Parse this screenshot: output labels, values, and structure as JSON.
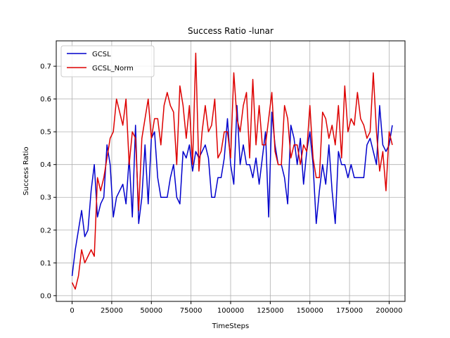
{
  "chart_data": {
    "type": "line",
    "title": "Success Ratio -lunar",
    "xlabel": "TimeSteps",
    "ylabel": "Success Ratio",
    "xlim": [
      -10000,
      210000
    ],
    "ylim": [
      -0.0175,
      0.7775
    ],
    "xticks": [
      0,
      25000,
      50000,
      75000,
      100000,
      125000,
      150000,
      175000,
      200000
    ],
    "xtick_labels": [
      "0",
      "25000",
      "50000",
      "75000",
      "100000",
      "125000",
      "150000",
      "175000",
      "200000"
    ],
    "yticks": [
      0.0,
      0.1,
      0.2,
      0.3,
      0.4,
      0.5,
      0.6,
      0.7
    ],
    "ytick_labels": [
      "0.0",
      "0.1",
      "0.2",
      "0.3",
      "0.4",
      "0.5",
      "0.6",
      "0.7"
    ],
    "grid": true,
    "legend_position": "top-left",
    "x_step": 2000,
    "series": [
      {
        "name": "GCSL",
        "color": "#0000cc",
        "values": [
          0.06,
          0.14,
          0.2,
          0.26,
          0.18,
          0.2,
          0.32,
          0.4,
          0.24,
          0.28,
          0.3,
          0.46,
          0.4,
          0.24,
          0.3,
          0.32,
          0.34,
          0.28,
          0.42,
          0.24,
          0.52,
          0.22,
          0.3,
          0.46,
          0.28,
          0.48,
          0.5,
          0.36,
          0.3,
          0.3,
          0.3,
          0.36,
          0.4,
          0.3,
          0.28,
          0.44,
          0.42,
          0.46,
          0.38,
          0.44,
          0.42,
          0.44,
          0.46,
          0.42,
          0.3,
          0.3,
          0.36,
          0.36,
          0.42,
          0.54,
          0.4,
          0.34,
          0.58,
          0.4,
          0.46,
          0.4,
          0.4,
          0.36,
          0.42,
          0.34,
          0.42,
          0.5,
          0.24,
          0.56,
          0.46,
          0.4,
          0.4,
          0.36,
          0.28,
          0.52,
          0.48,
          0.4,
          0.48,
          0.34,
          0.44,
          0.5,
          0.4,
          0.22,
          0.32,
          0.4,
          0.34,
          0.46,
          0.32,
          0.22,
          0.44,
          0.4,
          0.4,
          0.36,
          0.4,
          0.36,
          0.36,
          0.36,
          0.36,
          0.46,
          0.48,
          0.44,
          0.4,
          0.58,
          0.46,
          0.44,
          0.46,
          0.52
        ]
      },
      {
        "name": "GCSL_Norm",
        "color": "#dd0000",
        "values": [
          0.04,
          0.02,
          0.06,
          0.14,
          0.1,
          0.12,
          0.14,
          0.12,
          0.36,
          0.32,
          0.36,
          0.42,
          0.48,
          0.5,
          0.6,
          0.56,
          0.52,
          0.6,
          0.4,
          0.5,
          0.48,
          0.26,
          0.48,
          0.54,
          0.6,
          0.48,
          0.54,
          0.54,
          0.46,
          0.58,
          0.62,
          0.58,
          0.56,
          0.4,
          0.64,
          0.58,
          0.48,
          0.58,
          0.4,
          0.74,
          0.38,
          0.5,
          0.58,
          0.5,
          0.52,
          0.6,
          0.42,
          0.44,
          0.5,
          0.5,
          0.42,
          0.68,
          0.54,
          0.5,
          0.58,
          0.62,
          0.42,
          0.66,
          0.46,
          0.58,
          0.46,
          0.46,
          0.54,
          0.62,
          0.44,
          0.4,
          0.4,
          0.58,
          0.54,
          0.42,
          0.46,
          0.46,
          0.4,
          0.46,
          0.44,
          0.58,
          0.42,
          0.36,
          0.36,
          0.56,
          0.54,
          0.48,
          0.52,
          0.46,
          0.58,
          0.42,
          0.64,
          0.5,
          0.54,
          0.52,
          0.62,
          0.54,
          0.52,
          0.48,
          0.5,
          0.68,
          0.5,
          0.38,
          0.44,
          0.32,
          0.5,
          0.46
        ]
      }
    ]
  }
}
